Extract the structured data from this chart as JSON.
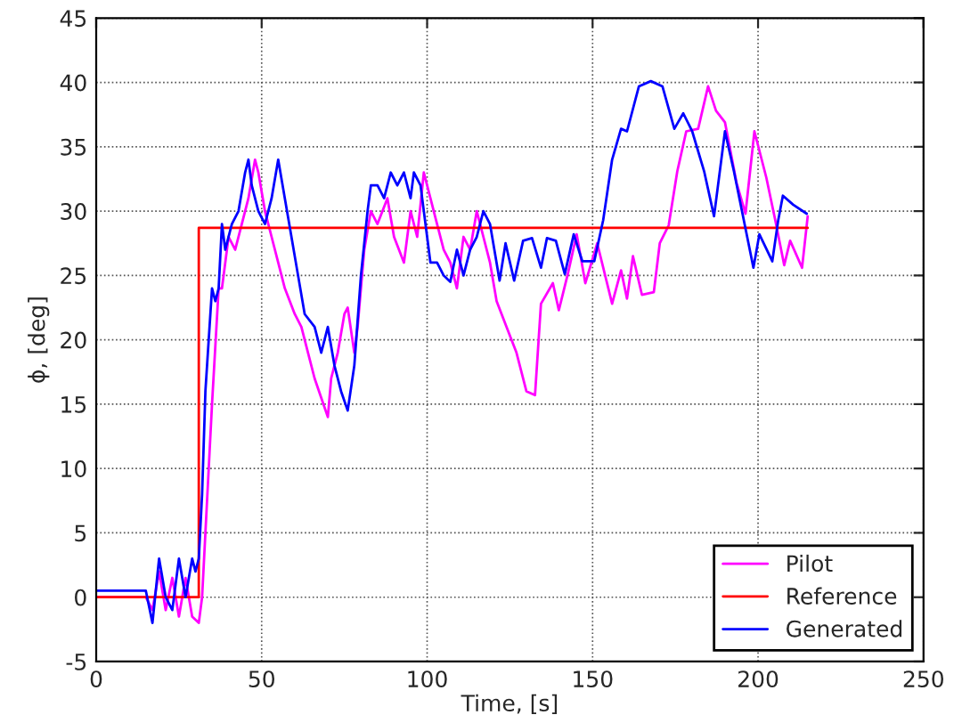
{
  "chart_data": {
    "type": "line",
    "xlabel": "Time, [s]",
    "ylabel": "ϕ, [deg]",
    "xlim": [
      0,
      250
    ],
    "xticks": [
      0,
      50,
      100,
      150,
      200,
      250
    ],
    "ylim": [
      -5,
      45
    ],
    "yticks": [
      -5,
      0,
      5,
      10,
      15,
      20,
      25,
      30,
      35,
      40,
      45
    ],
    "grid": true,
    "legend": "bottom right",
    "marker": "none",
    "line_style": "solid",
    "series": [
      {
        "name": "Pilot",
        "color": "#ff00ff",
        "x": [
          0,
          15,
          17,
          19,
          21,
          23,
          25,
          27,
          29,
          31,
          32,
          33,
          35,
          37,
          38,
          40,
          42,
          44,
          46,
          48,
          49,
          51,
          53,
          55,
          57,
          60,
          62,
          64,
          66,
          68,
          70,
          71,
          73,
          75,
          76,
          78,
          79,
          81,
          83,
          85,
          88,
          90,
          93,
          95,
          97,
          99,
          101,
          103,
          105,
          107,
          109,
          111,
          113,
          115,
          117,
          119,
          121,
          124,
          127,
          130,
          132.6,
          134.4,
          138,
          139.8,
          142.5,
          145.2,
          147.8,
          151.4,
          155.9,
          158.6,
          160.4,
          162.2,
          164.9,
          168.5,
          170.3,
          173,
          175.6,
          178.3,
          181.9,
          184.9,
          187.3,
          190,
          193.5,
          196.2,
          198.9,
          202.5,
          205.2,
          207.9,
          209.7,
          213.3,
          215
        ],
        "values": [
          0,
          0,
          -1,
          2,
          -1,
          1.5,
          -1.5,
          1.5,
          -1.5,
          -2,
          0,
          5,
          15,
          24,
          24,
          28,
          27,
          29,
          31,
          34,
          33,
          30,
          28,
          26,
          24,
          22,
          21,
          19,
          17,
          15.5,
          14,
          17,
          19,
          22,
          22.5,
          19,
          21,
          27,
          30,
          29,
          31,
          28,
          26,
          30,
          28,
          33,
          31,
          29,
          27,
          26,
          24,
          28,
          27,
          30,
          28,
          26,
          23,
          21,
          19,
          16,
          15.7,
          22.8,
          24.4,
          22.3,
          25.1,
          28.2,
          24.4,
          27.5,
          22.8,
          25.4,
          23.2,
          26.5,
          23.5,
          23.7,
          27.5,
          28.9,
          33.1,
          36.2,
          36.4,
          39.7,
          37.8,
          36.9,
          32.2,
          29.8,
          36.2,
          32.6,
          29.3,
          25.8,
          27.7,
          25.6,
          29.6
        ]
      },
      {
        "name": "Reference",
        "color": "#ff0000",
        "x": [
          0,
          31,
          31,
          215
        ],
        "values": [
          0,
          0,
          28.7,
          28.7
        ]
      },
      {
        "name": "Generated",
        "color": "#0000ff",
        "x": [
          0,
          15,
          17,
          19,
          21,
          23,
          25,
          27,
          29,
          30,
          31,
          32,
          33,
          35,
          36,
          37,
          38,
          39,
          41,
          43,
          45,
          46,
          47,
          49,
          51,
          53,
          55,
          57,
          59,
          61,
          63,
          66,
          68,
          70,
          72,
          74,
          76,
          78,
          80,
          82,
          83,
          85,
          87,
          89,
          91,
          93,
          95,
          96,
          98,
          100,
          101,
          103,
          105,
          107,
          109,
          111,
          113,
          115,
          117,
          119,
          121.9,
          123.7,
          126.3,
          129,
          131.7,
          134.4,
          136.2,
          138.9,
          141.6,
          144.3,
          146.9,
          150.5,
          153.2,
          155.9,
          158.6,
          160.4,
          164,
          167.6,
          171.1,
          174.7,
          177.4,
          180.1,
          183.7,
          186.7,
          190,
          192.7,
          195.3,
          198.6,
          200.4,
          204.3,
          206.1,
          207.5,
          210.6,
          214.7
        ],
        "values": [
          0.5,
          0.5,
          -2,
          3,
          0,
          -1,
          3,
          0,
          3,
          2,
          3,
          8,
          16,
          24,
          23,
          24,
          29,
          27,
          29,
          30,
          33,
          34,
          32,
          30,
          29,
          31,
          34,
          31,
          28,
          25,
          22,
          21,
          19,
          21,
          18,
          16,
          14.5,
          18,
          25,
          30,
          32,
          32,
          31,
          33,
          32,
          33,
          31,
          33,
          32,
          28,
          26,
          26,
          25,
          24.5,
          27,
          25,
          27,
          28,
          30,
          29,
          24.6,
          27.5,
          24.6,
          27.7,
          27.9,
          25.6,
          27.9,
          27.7,
          25.1,
          28.2,
          26.1,
          26.1,
          29.3,
          34,
          36.4,
          36.2,
          39.7,
          40.1,
          39.7,
          36.4,
          37.6,
          36.2,
          33.1,
          29.6,
          36.2,
          33.1,
          29.8,
          25.6,
          28.2,
          26.1,
          29.3,
          31.2,
          30.5,
          29.8
        ]
      }
    ]
  }
}
